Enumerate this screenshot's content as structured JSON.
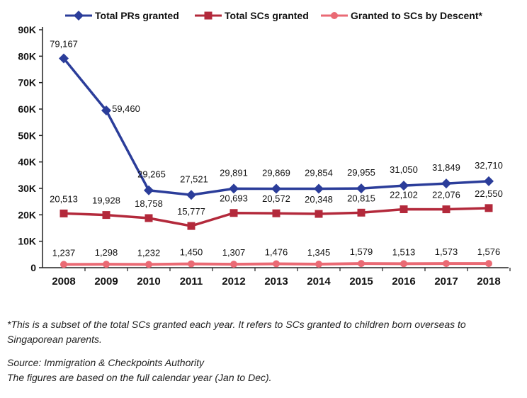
{
  "chart_data": {
    "type": "line",
    "categories": [
      "2008",
      "2009",
      "2010",
      "2011",
      "2012",
      "2013",
      "2014",
      "2015",
      "2016",
      "2017",
      "2018"
    ],
    "series": [
      {
        "name": "Total PRs granted",
        "color": "#2b3d9a",
        "marker": "diamond",
        "values": [
          79167,
          59460,
          29265,
          27521,
          29891,
          29869,
          29854,
          29955,
          31050,
          31849,
          32710
        ],
        "labels": [
          "79,167",
          "59,460",
          "29,265",
          "27,521",
          "29,891",
          "29,869",
          "29,854",
          "29,955",
          "31,050",
          "31,849",
          "32,710"
        ]
      },
      {
        "name": "Total SCs granted",
        "color": "#b3293b",
        "marker": "square",
        "values": [
          20513,
          19928,
          18758,
          15777,
          20693,
          20572,
          20348,
          20815,
          22102,
          22076,
          22550
        ],
        "labels": [
          "20,513",
          "19,928",
          "18,758",
          "15,777",
          "20,693",
          "20,572",
          "20,348",
          "20,815",
          "22,102",
          "22,076",
          "22,550"
        ]
      },
      {
        "name": "Granted to SCs by Descent*",
        "color": "#ea6a74",
        "marker": "circle",
        "values": [
          1237,
          1298,
          1232,
          1450,
          1307,
          1476,
          1345,
          1579,
          1513,
          1573,
          1576
        ],
        "labels": [
          "1,237",
          "1,298",
          "1,232",
          "1,450",
          "1,307",
          "1,476",
          "1,345",
          "1,579",
          "1,513",
          "1,573",
          "1,576"
        ]
      }
    ],
    "yticks": [
      0,
      10000,
      20000,
      30000,
      40000,
      50000,
      60000,
      70000,
      80000,
      90000
    ],
    "ytick_labels": [
      "0",
      "10K",
      "20K",
      "30K",
      "40K",
      "50K",
      "60K",
      "70K",
      "80K",
      "90K"
    ],
    "ylim": [
      0,
      90000
    ],
    "legend": "top",
    "grid": false
  },
  "footnote": "*This is a subset of the total SCs granted each year. It refers to SCs granted to children born overseas to Singaporean parents.",
  "source": "Source: Immigration & Checkpoints Authority",
  "basis_note": "The figures are based on the full calendar year (Jan to Dec)."
}
